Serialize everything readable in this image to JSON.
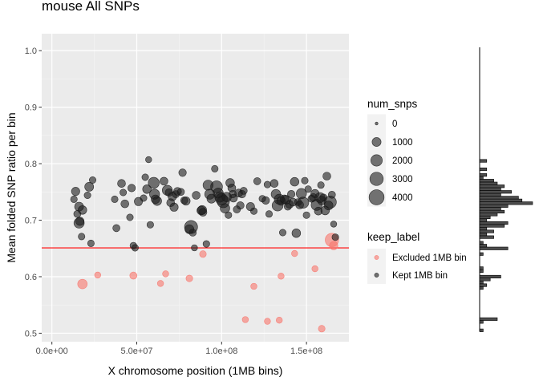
{
  "chart_data": [
    {
      "type": "scatter",
      "title": "mouse All SNPs",
      "xlabel": "X chromosome position (1MB bins)",
      "ylabel": "Mean folded SNP ratio per bin",
      "xlim": [
        -6000000,
        175000000
      ],
      "ylim": [
        0.485,
        1.03
      ],
      "x_ticks": [
        {
          "value": 0,
          "label": "0.0e+00"
        },
        {
          "value": 50000000,
          "label": "5.0e+07"
        },
        {
          "value": 100000000,
          "label": "1.0e+08"
        },
        {
          "value": 150000000,
          "label": "1.5e+08"
        }
      ],
      "y_ticks": [
        {
          "value": 0.5,
          "label": "0.5"
        },
        {
          "value": 0.6,
          "label": "0.6"
        },
        {
          "value": 0.7,
          "label": "0.7"
        },
        {
          "value": 0.8,
          "label": "0.8"
        },
        {
          "value": 0.9,
          "label": "0.9"
        },
        {
          "value": 1.0,
          "label": "1.0"
        }
      ],
      "grid": true,
      "background": "#ebebeb",
      "threshold_line": {
        "y": 0.651,
        "color": "#ff0000"
      },
      "size_legend": {
        "title": "num_snps",
        "entries": [
          {
            "label": "0",
            "value": 0
          },
          {
            "label": "1000",
            "value": 1000
          },
          {
            "label": "2000",
            "value": 2000
          },
          {
            "label": "3000",
            "value": 3000
          },
          {
            "label": "4000",
            "value": 4000
          }
        ]
      },
      "color_legend": {
        "title": "keep_label",
        "entries": [
          {
            "label": "Excluded 1MB bin",
            "color": "#f8766d"
          },
          {
            "label": "Kept 1MB bin",
            "color": "#1a1a1a"
          }
        ]
      },
      "legend_position": "right",
      "series": [
        {
          "name": "Excluded 1MB bin",
          "color": "#f8766d",
          "points": [
            [
              18000000,
              0.587,
              1200
            ],
            [
              27000000,
              0.603,
              300
            ],
            [
              48000000,
              0.602,
              500
            ],
            [
              64000000,
              0.588,
              300
            ],
            [
              67000000,
              0.605,
              300
            ],
            [
              81000000,
              0.597,
              400
            ],
            [
              89000000,
              0.64,
              400
            ],
            [
              114000000,
              0.524,
              300
            ],
            [
              119000000,
              0.583,
              300
            ],
            [
              127000000,
              0.521,
              300
            ],
            [
              134000000,
              0.523,
              300
            ],
            [
              135000000,
              0.601,
              300
            ],
            [
              143000000,
              0.641,
              300
            ],
            [
              155000000,
              0.614,
              300
            ],
            [
              159000000,
              0.508,
              400
            ],
            [
              165000000,
              0.665,
              3000
            ],
            [
              166000000,
              0.655,
              800
            ]
          ]
        },
        {
          "name": "Kept 1MB bin",
          "color": "#1a1a1a",
          "points": [
            [
              13000000,
              0.737,
              400
            ],
            [
              14000000,
              0.751,
              800
            ],
            [
              15000000,
              0.711,
              500
            ],
            [
              16000000,
              0.724,
              1000
            ],
            [
              16000000,
              0.695,
              1500
            ],
            [
              16500000,
              0.698,
              800
            ],
            [
              17500000,
              0.671,
              400
            ],
            [
              18000000,
              0.718,
              900
            ],
            [
              21000000,
              0.744,
              400
            ],
            [
              22000000,
              0.759,
              1000
            ],
            [
              23000000,
              0.659,
              400
            ],
            [
              24000000,
              0.771,
              400
            ],
            [
              37000000,
              0.737,
              400
            ],
            [
              38000000,
              0.686,
              500
            ],
            [
              41000000,
              0.765,
              700
            ],
            [
              42000000,
              0.749,
              400
            ],
            [
              43000000,
              0.729,
              700
            ],
            [
              46000000,
              0.705,
              400
            ],
            [
              47000000,
              0.757,
              600
            ],
            [
              48000000,
              0.655,
              400
            ],
            [
              49000000,
              0.651,
              400
            ],
            [
              51000000,
              0.733,
              800
            ],
            [
              54000000,
              0.739,
              400
            ],
            [
              55000000,
              0.776,
              400
            ],
            [
              56000000,
              0.755,
              900
            ],
            [
              57000000,
              0.807,
              300
            ],
            [
              58000000,
              0.692,
              400
            ],
            [
              60000000,
              0.766,
              1800
            ],
            [
              60500000,
              0.746,
              1400
            ],
            [
              61000000,
              0.737,
              900
            ],
            [
              62000000,
              0.734,
              1000
            ],
            [
              66000000,
              0.769,
              700
            ],
            [
              68000000,
              0.753,
              1400
            ],
            [
              69000000,
              0.749,
              600
            ],
            [
              70000000,
              0.731,
              700
            ],
            [
              71000000,
              0.742,
              900
            ],
            [
              72000000,
              0.723,
              800
            ],
            [
              73000000,
              0.746,
              500
            ],
            [
              74000000,
              0.751,
              700
            ],
            [
              76000000,
              0.75,
              500
            ],
            [
              77000000,
              0.784,
              600
            ],
            [
              78000000,
              0.735,
              500
            ],
            [
              79000000,
              0.734,
              800
            ],
            [
              81000000,
              0.684,
              1000
            ],
            [
              82000000,
              0.688,
              2800
            ],
            [
              83000000,
              0.678,
              500
            ],
            [
              84000000,
              0.651,
              300
            ],
            [
              85000000,
              0.744,
              700
            ],
            [
              88000000,
              0.717,
              900
            ],
            [
              88500000,
              0.718,
              1000
            ],
            [
              89000000,
              0.714,
              700
            ],
            [
              91000000,
              0.658,
              400
            ],
            [
              92000000,
              0.762,
              1400
            ],
            [
              93000000,
              0.746,
              1400
            ],
            [
              94000000,
              0.738,
              1000
            ],
            [
              96000000,
              0.791,
              400
            ],
            [
              97000000,
              0.759,
              2200
            ],
            [
              98000000,
              0.748,
              1400
            ],
            [
              99000000,
              0.741,
              1500
            ],
            [
              100000000,
              0.737,
              2100
            ],
            [
              101000000,
              0.733,
              2400
            ],
            [
              102000000,
              0.721,
              1200
            ],
            [
              103000000,
              0.741,
              1200
            ],
            [
              104000000,
              0.709,
              400
            ],
            [
              105000000,
              0.766,
              900
            ],
            [
              106000000,
              0.757,
              700
            ],
            [
              106500000,
              0.746,
              600
            ],
            [
              107000000,
              0.739,
              700
            ],
            [
              109000000,
              0.719,
              500
            ],
            [
              110000000,
              0.748,
              700
            ],
            [
              111000000,
              0.726,
              600
            ],
            [
              112000000,
              0.746,
              600
            ],
            [
              113000000,
              0.752,
              500
            ],
            [
              117000000,
              0.724,
              800
            ],
            [
              119000000,
              0.716,
              400
            ],
            [
              121000000,
              0.769,
              500
            ],
            [
              124000000,
              0.738,
              400
            ],
            [
              126000000,
              0.735,
              600
            ],
            [
              127000000,
              0.763,
              400
            ],
            [
              128000000,
              0.711,
              400
            ],
            [
              131000000,
              0.765,
              700
            ],
            [
              132000000,
              0.746,
              1200
            ],
            [
              133000000,
              0.726,
              1800
            ],
            [
              134000000,
              0.737,
              1400
            ],
            [
              135000000,
              0.734,
              900
            ],
            [
              136000000,
              0.678,
              400
            ],
            [
              137000000,
              0.737,
              900
            ],
            [
              138000000,
              0.736,
              1000
            ],
            [
              139000000,
              0.724,
              500
            ],
            [
              140000000,
              0.728,
              700
            ],
            [
              141000000,
              0.746,
              600
            ],
            [
              142000000,
              0.732,
              700
            ],
            [
              143000000,
              0.768,
              900
            ],
            [
              144000000,
              0.677,
              900
            ],
            [
              145000000,
              0.732,
              500
            ],
            [
              146000000,
              0.727,
              700
            ],
            [
              147000000,
              0.747,
              1500
            ],
            [
              148000000,
              0.731,
              1900
            ],
            [
              149000000,
              0.77,
              400
            ],
            [
              150000000,
              0.709,
              400
            ],
            [
              151000000,
              0.755,
              400
            ],
            [
              153000000,
              0.738,
              500
            ],
            [
              154000000,
              0.74,
              700
            ],
            [
              155000000,
              0.747,
              800
            ],
            [
              156000000,
              0.727,
              1800
            ],
            [
              157000000,
              0.716,
              700
            ],
            [
              158000000,
              0.74,
              1400
            ],
            [
              158500000,
              0.762,
              400
            ],
            [
              159000000,
              0.735,
              900
            ],
            [
              160000000,
              0.74,
              500
            ],
            [
              161000000,
              0.717,
              900
            ],
            [
              162000000,
              0.778,
              700
            ],
            [
              163000000,
              0.726,
              1000
            ],
            [
              164000000,
              0.732,
              2400
            ],
            [
              165000000,
              0.745,
              500
            ],
            [
              166000000,
              0.693,
              300
            ],
            [
              167000000,
              0.67,
              400
            ]
          ]
        }
      ]
    },
    {
      "type": "bar",
      "orientation": "horizontal",
      "title": "",
      "bin_width": 0.005,
      "ylim": [
        0.485,
        1.03
      ],
      "color": "#4d4d4d",
      "bins": [
        [
          0.505,
          1
        ],
        [
          0.52,
          1
        ],
        [
          0.525,
          5
        ],
        [
          0.58,
          1
        ],
        [
          0.585,
          2
        ],
        [
          0.59,
          1
        ],
        [
          0.595,
          3
        ],
        [
          0.6,
          6
        ],
        [
          0.61,
          1
        ],
        [
          0.615,
          1
        ],
        [
          0.64,
          1
        ],
        [
          0.65,
          8
        ],
        [
          0.655,
          2
        ],
        [
          0.66,
          1
        ],
        [
          0.67,
          4
        ],
        [
          0.675,
          2
        ],
        [
          0.68,
          4
        ],
        [
          0.685,
          2
        ],
        [
          0.69,
          7
        ],
        [
          0.695,
          8
        ],
        [
          0.7,
          2
        ],
        [
          0.705,
          3
        ],
        [
          0.71,
          5
        ],
        [
          0.715,
          7
        ],
        [
          0.72,
          6
        ],
        [
          0.725,
          8
        ],
        [
          0.73,
          15
        ],
        [
          0.735,
          12
        ],
        [
          0.74,
          11
        ],
        [
          0.745,
          6
        ],
        [
          0.75,
          9
        ],
        [
          0.755,
          6
        ],
        [
          0.76,
          7
        ],
        [
          0.765,
          5
        ],
        [
          0.77,
          4
        ],
        [
          0.775,
          1
        ],
        [
          0.78,
          2
        ],
        [
          0.79,
          2
        ],
        [
          0.805,
          2
        ]
      ]
    }
  ]
}
